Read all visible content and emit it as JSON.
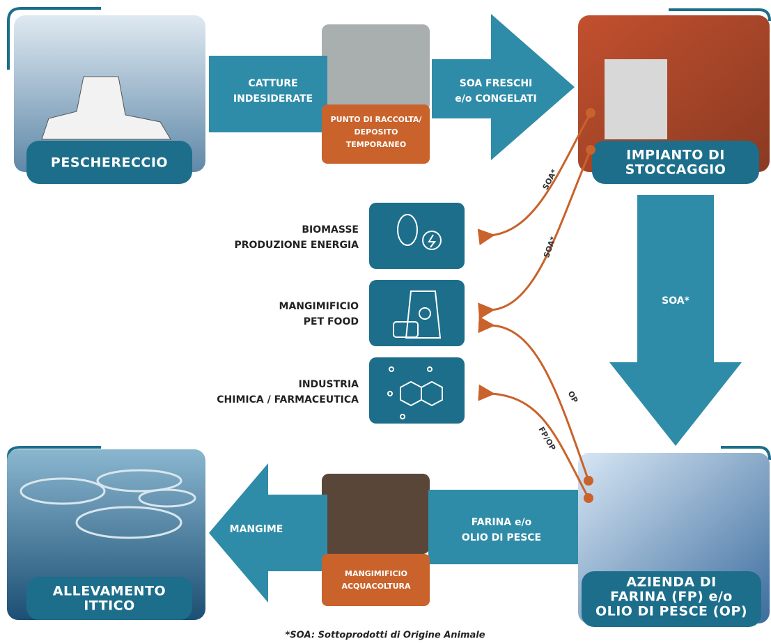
{
  "nodes": [
    {
      "label": [
        "PESCHERECCIO"
      ]
    },
    {
      "label": [
        "IMPIANTO DI",
        "STOCCAGGIO"
      ]
    },
    {
      "label": [
        "AZIENDA DI",
        "FARINA (FP) e/o",
        "OLIO DI PESCE (OP)"
      ]
    },
    {
      "label": [
        "ALLEVAMENTO",
        "ITTICO"
      ]
    }
  ],
  "intermediates": [
    {
      "label": [
        "PUNTO DI RACCOLTA/",
        "DEPOSITO",
        "TEMPORANEO"
      ]
    },
    {
      "label": [
        "MANGIMIFICIO",
        "ACQUACOLTURA"
      ]
    }
  ],
  "flows": [
    {
      "label": [
        "CATTURE",
        "INDESIDERATE"
      ]
    },
    {
      "label": [
        "SOA FRESCHI",
        "e/o CONGELATI"
      ]
    },
    {
      "label": [
        "SOA*"
      ]
    },
    {
      "label": [
        "FARINA e/o",
        "OLIO DI PESCE"
      ]
    },
    {
      "label": [
        "MANGIME"
      ]
    }
  ],
  "destinations": [
    {
      "label": [
        "BIOMASSE",
        "PRODUZIONE ENERGIA"
      ]
    },
    {
      "label": [
        "MANGIMIFICIO",
        "PET FOOD"
      ]
    },
    {
      "label": [
        "INDUSTRIA",
        "CHIMICA / FARMACEUTICA"
      ]
    }
  ],
  "side_flows": [
    {
      "label": "SOA*"
    },
    {
      "label": "SOA*"
    },
    {
      "label": "OP"
    },
    {
      "label": "FP/OP"
    }
  ],
  "footnote": "*SOA: Sottoprodotti di Origine Animale"
}
